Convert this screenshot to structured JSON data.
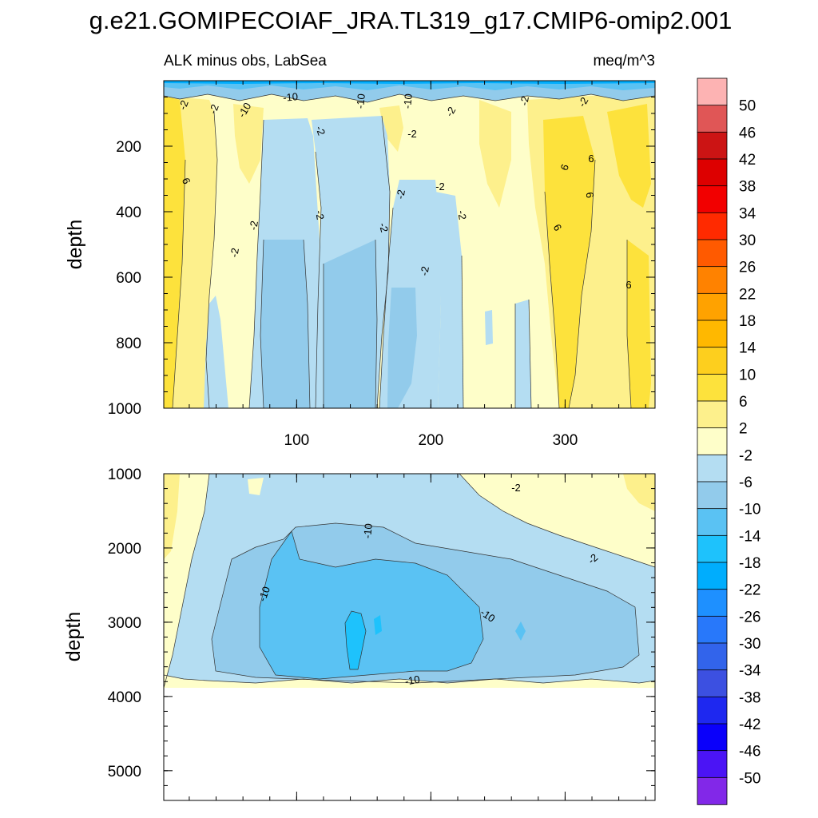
{
  "chart_data": {
    "type": "heatmap",
    "title": "g.e21.GOMIPECOIAF_JRA.TL319_g17.CMIP6-omip2.001",
    "subtitle_left": "ALK minus obs, LabSea",
    "subtitle_right": "meq/m^3",
    "ylabel": "depth",
    "xlim": [
      1,
      367
    ],
    "x_ticks": [
      "100",
      "200",
      "300"
    ],
    "top_panel": {
      "ylim": [
        0,
        1000
      ],
      "y_ticks": [
        "200",
        "400",
        "600",
        "800",
        "1000"
      ],
      "contour_labels": [
        "-2",
        "-2",
        "-10",
        "-10",
        "-10",
        "-10",
        "-2",
        "-2",
        "-2",
        "-2",
        "6",
        "-2",
        "-2",
        "-2",
        "-2",
        "-2",
        "-2",
        "6",
        "6",
        "6",
        "6",
        "-2",
        "-2",
        "6",
        "-2"
      ]
    },
    "bottom_panel": {
      "ylim": [
        1000,
        5400
      ],
      "y_ticks": [
        "1000",
        "2000",
        "3000",
        "4000",
        "5000"
      ],
      "contour_labels": [
        "-2",
        "-10",
        "-2",
        "-10",
        "-10",
        "-10"
      ]
    },
    "colorbar": {
      "levels": [
        "50",
        "46",
        "42",
        "38",
        "34",
        "30",
        "26",
        "22",
        "18",
        "14",
        "10",
        "6",
        "2",
        "-2",
        "-6",
        "-10",
        "-14",
        "-18",
        "-22",
        "-26",
        "-30",
        "-34",
        "-38",
        "-42",
        "-46",
        "-50"
      ],
      "colors": [
        "#fdb3b3",
        "#e05656",
        "#cc1414",
        "#dd0000",
        "#f20000",
        "#ff2a00",
        "#ff5a00",
        "#ff8200",
        "#ffa200",
        "#ffb800",
        "#fdcf1e",
        "#fde23c",
        "#fdf08c",
        "#fefec9",
        "#b4ddf2",
        "#92cbeb",
        "#5ac2f3",
        "#1ec2fc",
        "#00adfd",
        "#1e90ff",
        "#2878fa",
        "#3264eb",
        "#3c50e1",
        "#1e28f0",
        "#0a00fa",
        "#4b14f5",
        "#8228e8"
      ]
    }
  }
}
